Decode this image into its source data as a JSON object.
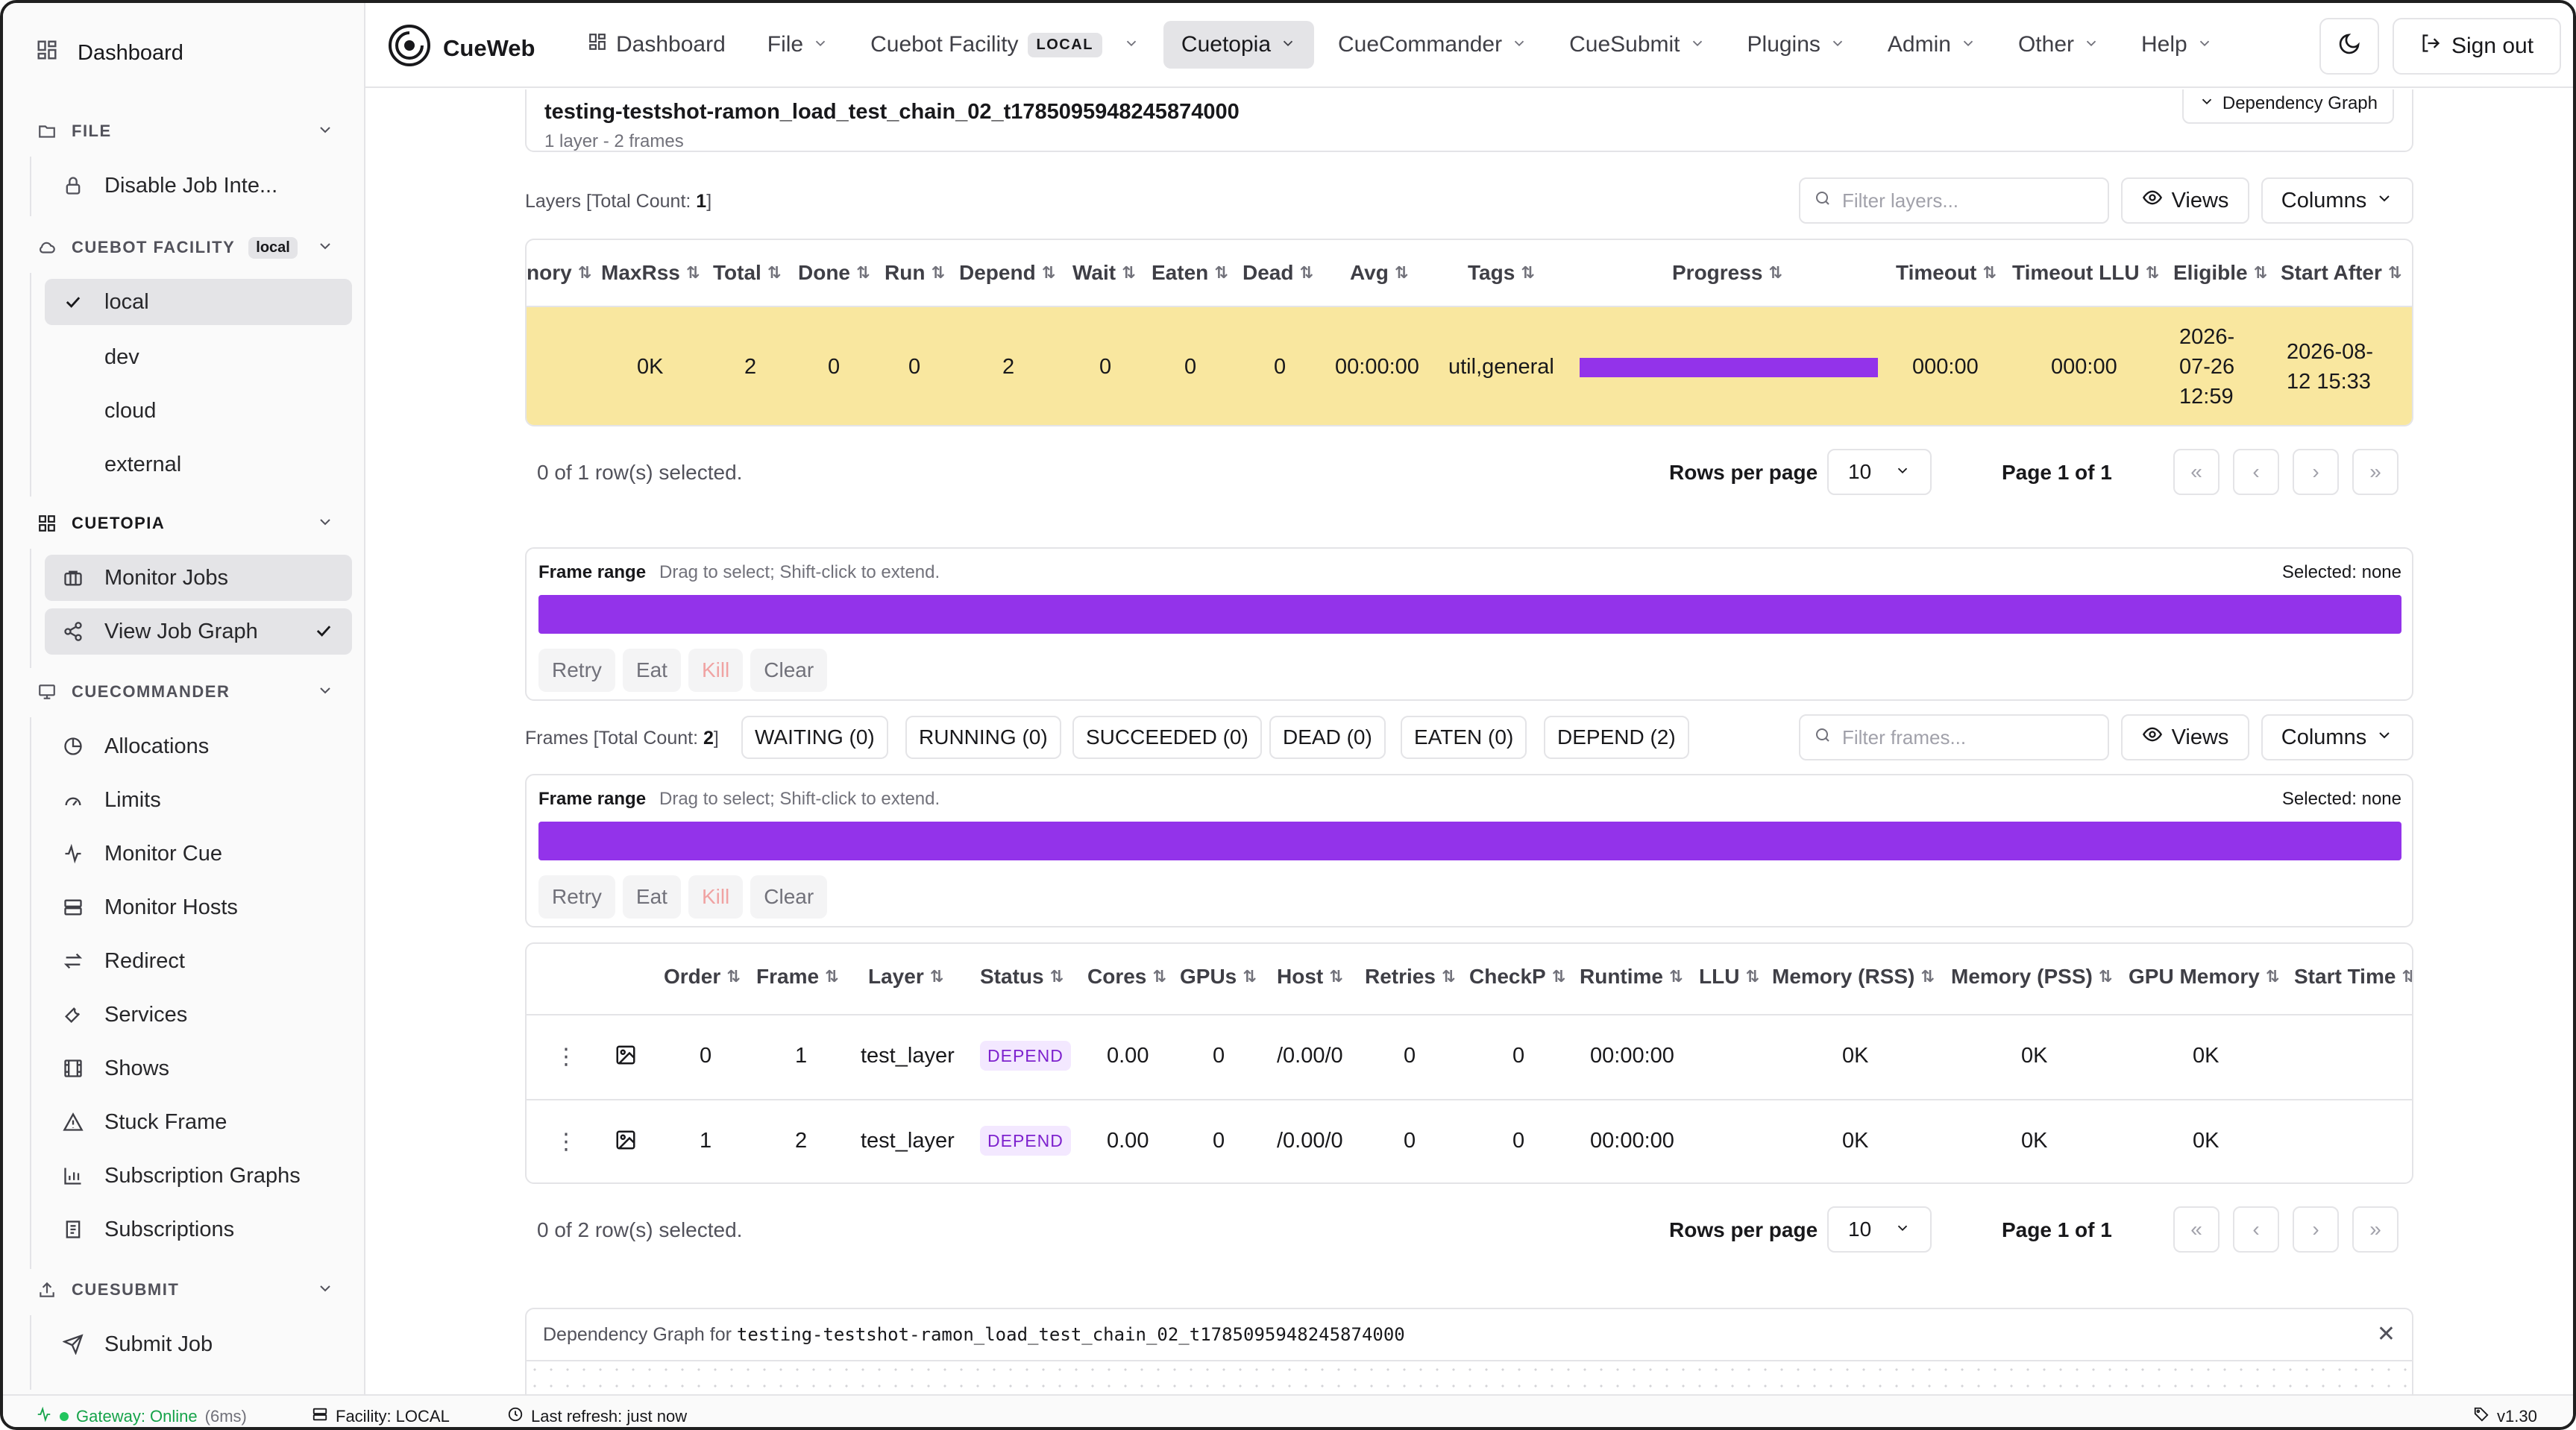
{
  "sidebar": {
    "dashboard": "Dashboard",
    "file": {
      "title": "FILE",
      "items": [
        "Disable Job Inte..."
      ]
    },
    "cuebot": {
      "title": "CUEBOT FACILITY",
      "badge": "local",
      "items": [
        "local",
        "dev",
        "cloud",
        "external"
      ]
    },
    "cuetopia": {
      "title": "CUETOPIA",
      "items": [
        "Monitor Jobs",
        "View Job Graph"
      ]
    },
    "cuecommander": {
      "title": "CUECOMMANDER",
      "items": [
        "Allocations",
        "Limits",
        "Monitor Cue",
        "Monitor Hosts",
        "Redirect",
        "Services",
        "Shows",
        "Stuck Frame",
        "Subscription Graphs",
        "Subscriptions"
      ]
    },
    "cuesubmit": {
      "title": "CUESUBMIT",
      "items": [
        "Submit Job"
      ]
    }
  },
  "topnav": {
    "brand": "CueWeb",
    "dashboard": "Dashboard",
    "file": "File",
    "cuebot": "Cuebot Facility",
    "cuebot_badge": "LOCAL",
    "cuetopia": "Cuetopia",
    "cuecommander": "CueCommander",
    "cuesubmit": "CueSubmit",
    "plugins": "Plugins",
    "admin": "Admin",
    "other": "Other",
    "help": "Help",
    "signout": "Sign out"
  },
  "job": {
    "name": "testing-testshot-ramon_load_test_chain_02_t1785095948245874000",
    "summary": "1 layer - 2 frames",
    "dep_button": "Dependency Graph"
  },
  "layers": {
    "label": "Layers [Total Count: ",
    "count": "1",
    "label_end": "]",
    "filter_placeholder": "Filter layers...",
    "views": "Views",
    "columns": "Columns",
    "headers": [
      "nory",
      "MaxRss",
      "Total",
      "Done",
      "Run",
      "Depend",
      "Wait",
      "Eaten",
      "Dead",
      "Avg",
      "Tags",
      "Progress",
      "Timeout",
      "Timeout LLU",
      "Eligible",
      "Start After"
    ],
    "row": {
      "maxrss": "0K",
      "total": "2",
      "done": "0",
      "run": "0",
      "depend": "2",
      "wait": "0",
      "eaten": "0",
      "dead": "0",
      "avg": "00:00:00",
      "tags": "util,general",
      "progress": 1.0,
      "timeout": "000:00",
      "timeout_llu": "000:00",
      "eligible": [
        "2026-",
        "07-26",
        "12:59"
      ],
      "start_after": [
        "2026-08-",
        "12 15:33"
      ]
    },
    "selected": "0 of 1 row(s) selected.",
    "rows_per_page_label": "Rows per page",
    "rows_per_page": "10",
    "page": "Page 1 of 1"
  },
  "frame_range": {
    "title": "Frame range",
    "hint": "Drag to select; Shift-click to extend.",
    "selected": "Selected: none",
    "actions": [
      "Retry",
      "Eat",
      "Kill",
      "Clear"
    ]
  },
  "frames": {
    "label": "Frames [Total Count: ",
    "count": "2",
    "label_end": "]",
    "chips": [
      "WAITING (0)",
      "RUNNING (0)",
      "SUCCEEDED (0)",
      "DEAD (0)",
      "EATEN (0)",
      "DEPEND (2)"
    ],
    "filter_placeholder": "Filter frames...",
    "views": "Views",
    "columns": "Columns",
    "headers": [
      "Order",
      "Frame",
      "Layer",
      "Status",
      "Cores",
      "GPUs",
      "Host",
      "Retries",
      "CheckP",
      "Runtime",
      "LLU",
      "Memory (RSS)",
      "Memory (PSS)",
      "GPU Memory",
      "Start Time"
    ],
    "rows": [
      {
        "order": "0",
        "frame": "1",
        "layer": "test_layer",
        "status": "DEPEND",
        "cores": "0.00",
        "gpus": "0",
        "host": "/0.00/0",
        "retries": "0",
        "checkp": "0",
        "runtime": "00:00:00",
        "rss": "0K",
        "pss": "0K",
        "gpumem": "0K"
      },
      {
        "order": "1",
        "frame": "2",
        "layer": "test_layer",
        "status": "DEPEND",
        "cores": "0.00",
        "gpus": "0",
        "host": "/0.00/0",
        "retries": "0",
        "checkp": "0",
        "runtime": "00:00:00",
        "rss": "0K",
        "pss": "0K",
        "gpumem": "0K"
      }
    ],
    "selected": "0 of 2 row(s) selected.",
    "rows_per_page_label": "Rows per page",
    "rows_per_page": "10",
    "page": "Page 1 of 1"
  },
  "dep_graph": {
    "label": "Dependency Graph for ",
    "job": "testing-testshot-ramon_load_test_chain_02_t1785095948245874000"
  },
  "statusbar": {
    "gateway": "Gateway: Online",
    "latency": "(6ms)",
    "facility": "Facility: LOCAL",
    "refresh": "Last refresh: just now",
    "version": "v1.30"
  },
  "colors": {
    "accent": "#9333ea",
    "row_highlight": "#f9e79f",
    "status_depend_bg": "#f3e8ff",
    "online": "#22c55e"
  }
}
